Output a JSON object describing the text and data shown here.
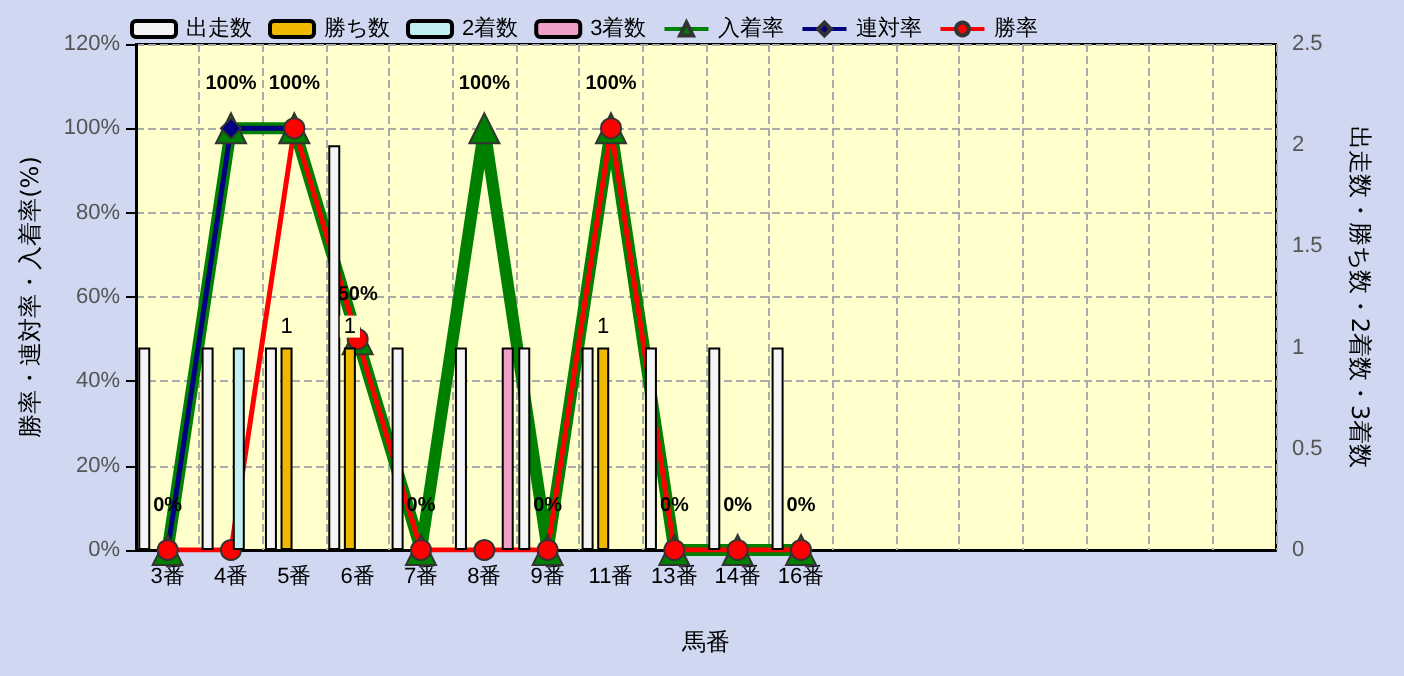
{
  "chart_data": {
    "type": "bar",
    "xlabel": "馬番",
    "ylabel": "勝率・連対率・入着率(%)",
    "y2label": "出走数・勝ち数・2着数・3着数",
    "categories": [
      "3番",
      "4番",
      "5番",
      "6番",
      "7番",
      "8番",
      "9番",
      "11番",
      "13番",
      "14番",
      "16番",
      null,
      null,
      null,
      null,
      null,
      null,
      null
    ],
    "series": [
      {
        "name": "出走数",
        "axis": "y2",
        "color": "#f4f4f4",
        "values": [
          1,
          1,
          1,
          2,
          1,
          1,
          1,
          1,
          1,
          1,
          1,
          null,
          null,
          null,
          null,
          null,
          null,
          null
        ]
      },
      {
        "name": "勝ち数",
        "axis": "y2",
        "color": "#f0b800",
        "values": [
          0,
          0,
          1,
          1,
          0,
          0,
          0,
          1,
          0,
          0,
          0,
          null,
          null,
          null,
          null,
          null,
          null,
          null
        ],
        "value_labels": [
          null,
          null,
          "1",
          "1",
          null,
          null,
          null,
          "1",
          null,
          null,
          null,
          null,
          null,
          null,
          null,
          null,
          null,
          null
        ]
      },
      {
        "name": "2着数",
        "axis": "y2",
        "color": "#c0f0f0",
        "values": [
          0,
          1,
          0,
          0,
          0,
          0,
          0,
          0,
          0,
          0,
          0,
          null,
          null,
          null,
          null,
          null,
          null,
          null
        ]
      },
      {
        "name": "3着数",
        "axis": "y2",
        "color": "#f0a0c8",
        "values": [
          0,
          0,
          0,
          0,
          0,
          1,
          0,
          0,
          0,
          0,
          0,
          null,
          null,
          null,
          null,
          null,
          null,
          null
        ]
      },
      {
        "name": "入着率",
        "type": "line",
        "color": "#008000",
        "marker": "triangle",
        "values": [
          0,
          100,
          100,
          50,
          0,
          100,
          0,
          100,
          0,
          0,
          0,
          null,
          null,
          null,
          null,
          null,
          null,
          null
        ],
        "value_labels": [
          "0%",
          "100%",
          "100%",
          "50%",
          "0%",
          "100%",
          "0%",
          "100%",
          "0%",
          "0%",
          "0%",
          null,
          null,
          null,
          null,
          null,
          null,
          null
        ]
      },
      {
        "name": "連対率",
        "type": "line",
        "color": "#000080",
        "marker": "diamond",
        "values": [
          0,
          100,
          100,
          null,
          null,
          null,
          null,
          null,
          null,
          null,
          null,
          null,
          null,
          null,
          null,
          null,
          null,
          null
        ]
      },
      {
        "name": "勝率",
        "type": "line",
        "color": "#ff0000",
        "marker": "circle",
        "values": [
          0,
          0,
          100,
          50,
          0,
          0,
          0,
          100,
          0,
          0,
          0,
          null,
          null,
          null,
          null,
          null,
          null,
          null
        ]
      }
    ],
    "ylim": [
      0,
      120
    ],
    "yticks": [
      {
        "value": 0,
        "label": "0%"
      },
      {
        "value": 20,
        "label": "20%"
      },
      {
        "value": 40,
        "label": "40%"
      },
      {
        "value": 60,
        "label": "60%"
      },
      {
        "value": 80,
        "label": "80%"
      },
      {
        "value": 100,
        "label": "100%"
      },
      {
        "value": 120,
        "label": "120%"
      }
    ],
    "y2lim": [
      0,
      2.5
    ],
    "y2ticks": [
      0,
      0.5,
      1,
      1.5,
      2,
      2.5
    ],
    "grid": true,
    "legend": "top"
  }
}
